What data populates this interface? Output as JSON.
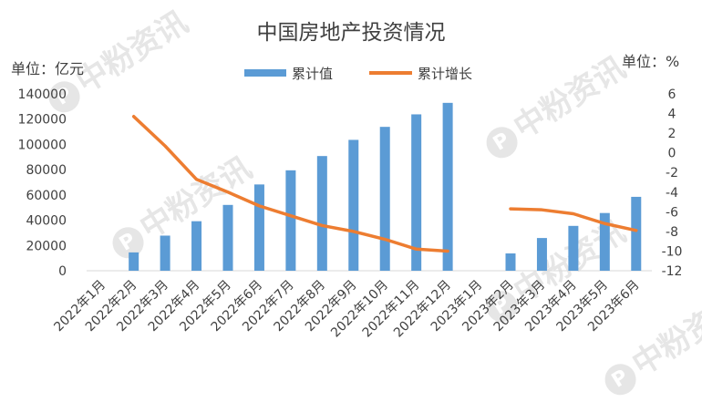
{
  "chart_data": {
    "type": "bar+line",
    "title": "中国房地产投资情况",
    "left_unit_label": "单位：亿元",
    "right_unit_label": "单位：%",
    "categories": [
      "2022年1月",
      "2022年2月",
      "2022年3月",
      "2022年4月",
      "2022年5月",
      "2022年6月",
      "2022年7月",
      "2022年8月",
      "2022年9月",
      "2022年10月",
      "2022年11月",
      "2022年12月",
      "2023年1月",
      "2023年2月",
      "2023年3月",
      "2023年4月",
      "2023年5月",
      "2023年6月"
    ],
    "series": [
      {
        "name": "累计值",
        "type": "bar",
        "axis": "left",
        "color": "#5b9bd5",
        "values": [
          null,
          14500,
          27800,
          39200,
          52100,
          68300,
          79500,
          90800,
          103600,
          113900,
          123800,
          132900,
          null,
          13700,
          25900,
          35500,
          45700,
          58500
        ]
      },
      {
        "name": "累计增长",
        "type": "line",
        "axis": "right",
        "color": "#ed7d31",
        "values": [
          null,
          3.7,
          0.7,
          -2.7,
          -4.0,
          -5.4,
          -6.4,
          -7.4,
          -8.0,
          -8.8,
          -9.8,
          -10.0,
          null,
          -5.7,
          -5.8,
          -6.2,
          -7.2,
          -7.9
        ]
      }
    ],
    "y_left": {
      "min": 0,
      "max": 140000,
      "ticks": [
        0,
        20000,
        40000,
        60000,
        80000,
        100000,
        120000,
        140000
      ]
    },
    "y_right": {
      "min": -12,
      "max": 6,
      "ticks": [
        6,
        4,
        2,
        0,
        -2,
        -4,
        -6,
        -8,
        -10,
        -12
      ]
    },
    "legend_position": "top",
    "grid": false
  },
  "watermark": {
    "text": "中粉资讯",
    "logo_glyph": "P",
    "color": "#e6e6e6"
  }
}
